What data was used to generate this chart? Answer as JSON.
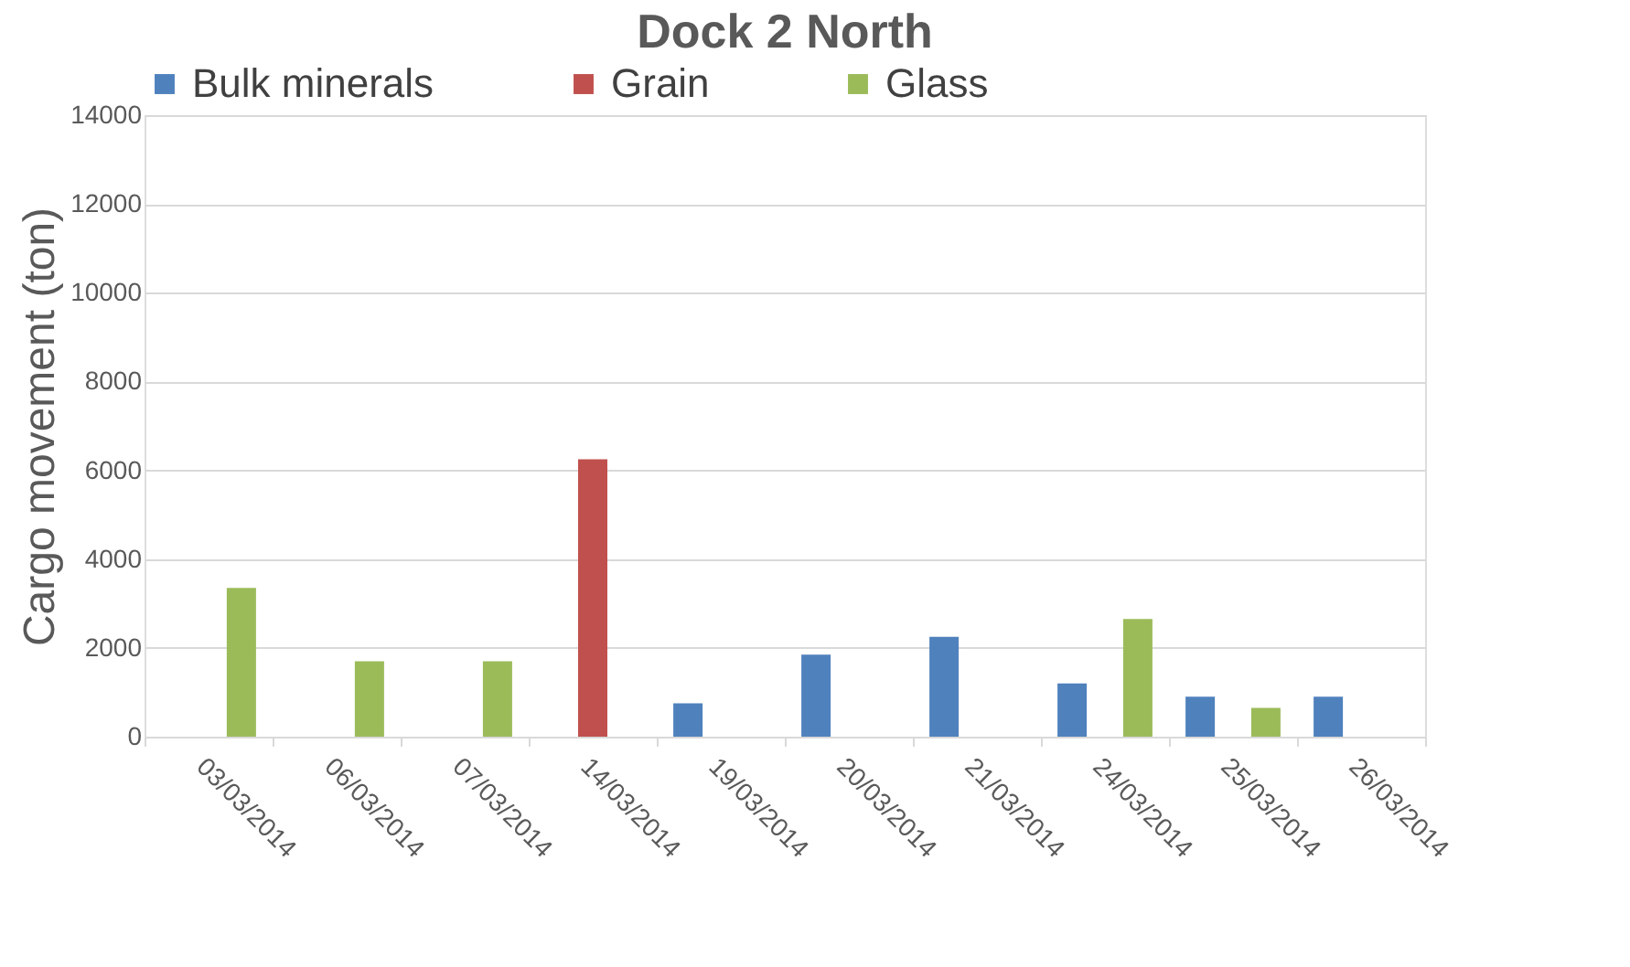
{
  "chart_data": {
    "type": "bar",
    "title": "Dock 2 North",
    "ylabel": "Cargo movement (ton)",
    "categories": [
      "03/03/2014",
      "06/03/2014",
      "07/03/2014",
      "14/03/2014",
      "19/03/2014",
      "20/03/2014",
      "21/03/2014",
      "24/03/2014",
      "25/03/2014",
      "26/03/2014"
    ],
    "series": [
      {
        "name": "Bulk minerals",
        "color": "#4f81bd",
        "values": [
          null,
          null,
          null,
          null,
          750,
          1850,
          2250,
          1200,
          900,
          900
        ]
      },
      {
        "name": "Grain",
        "color": "#c0504d",
        "values": [
          null,
          null,
          null,
          6250,
          null,
          null,
          null,
          null,
          null,
          null
        ]
      },
      {
        "name": "Glass",
        "color": "#9bbb59",
        "values": [
          3350,
          1700,
          1700,
          null,
          null,
          null,
          null,
          2650,
          650,
          null
        ]
      }
    ],
    "ylim": [
      0,
      14000
    ],
    "yticks": [
      0,
      2000,
      4000,
      6000,
      8000,
      10000,
      12000,
      14000
    ],
    "grid": "y",
    "legend": "top"
  }
}
